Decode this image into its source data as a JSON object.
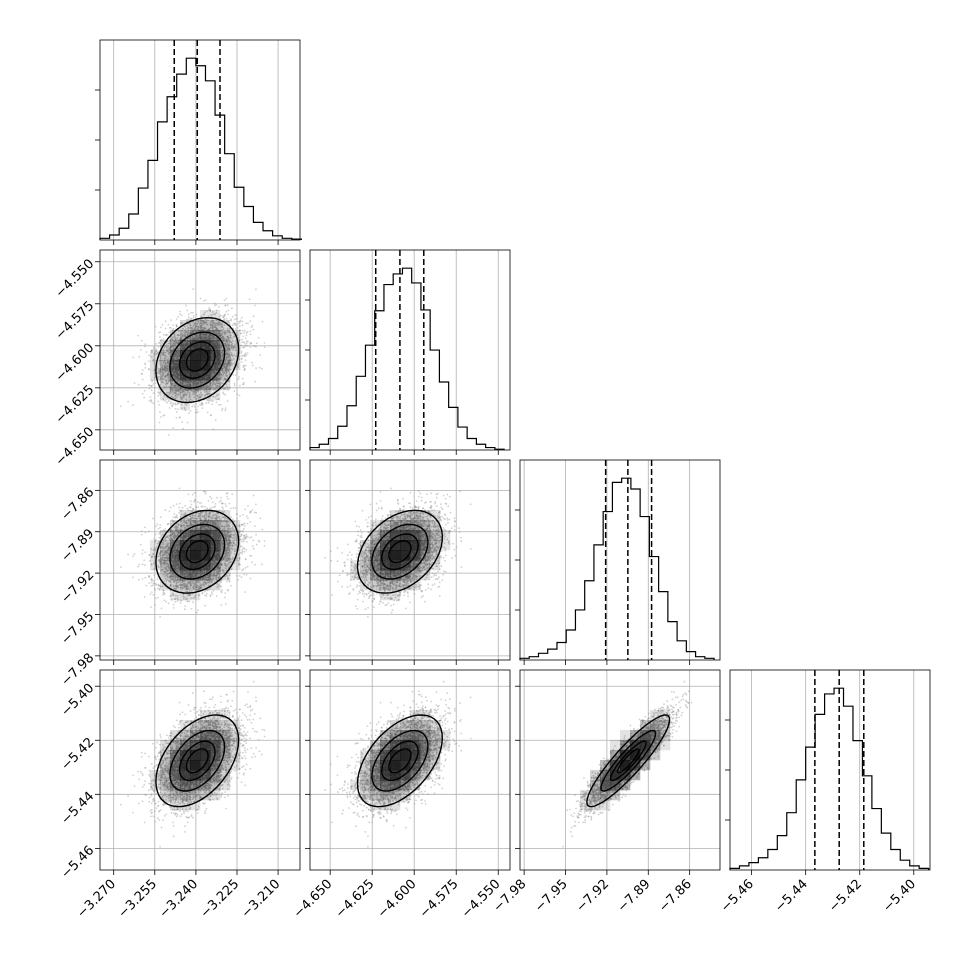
{
  "chart_data": {
    "type": "corner",
    "params": [
      {
        "range": [
          -3.275,
          -3.202
        ],
        "ticks": [
          -3.27,
          -3.255,
          -3.24,
          -3.225,
          -3.21
        ],
        "tick_labels": [
          "−3.270",
          "−3.255",
          "−3.240",
          "−3.225",
          "−3.210"
        ],
        "mean": -3.2395,
        "sd": 0.0073,
        "quantiles": [
          -3.2479,
          -3.2395,
          -3.2312
        ],
        "hist": {
          "edges": [
            -3.275,
            -3.2715,
            -3.268,
            -3.2645,
            -3.261,
            -3.2575,
            -3.254,
            -3.2505,
            -3.247,
            -3.2435,
            -3.24,
            -3.2365,
            -3.233,
            -3.2295,
            -3.226,
            -3.2225,
            -3.219,
            -3.2155,
            -3.212,
            -3.2085,
            -3.205,
            -3.2015
          ],
          "counts": [
            2,
            6,
            14,
            31,
            62,
            95,
            141,
            171,
            198,
            217,
            208,
            190,
            149,
            103,
            63,
            40,
            21,
            11,
            5,
            2,
            1
          ]
        }
      },
      {
        "range": [
          -4.662,
          -4.543
        ],
        "ticks": [
          -4.65,
          -4.625,
          -4.6,
          -4.575,
          -4.55
        ],
        "tick_labels": [
          "−4.650",
          "−4.625",
          "−4.600",
          "−4.575",
          "−4.550"
        ],
        "mean": -4.6085,
        "sd": 0.0122,
        "quantiles": [
          -4.6229,
          -4.6085,
          -4.5943
        ],
        "hist": {
          "edges": [
            -4.662,
            -4.6565,
            -4.651,
            -4.6455,
            -4.64,
            -4.6345,
            -4.629,
            -4.6235,
            -4.618,
            -4.6125,
            -4.607,
            -4.6015,
            -4.596,
            -4.5905,
            -4.585,
            -4.5795,
            -4.574,
            -4.5685,
            -4.563,
            -4.5575,
            -4.552,
            -4.5465
          ],
          "counts": [
            3,
            7,
            14,
            29,
            54,
            90,
            128,
            170,
            202,
            215,
            222,
            204,
            171,
            122,
            83,
            52,
            28,
            14,
            7,
            3,
            1
          ]
        }
      },
      {
        "range": [
          -7.983,
          -7.838
        ],
        "ticks": [
          -7.98,
          -7.95,
          -7.92,
          -7.89,
          -7.86
        ],
        "tick_labels": [
          "−7.98",
          "−7.95",
          "−7.92",
          "−7.89",
          "−7.86"
        ],
        "mean": -7.9045,
        "sd": 0.0145,
        "quantiles": [
          -7.9209,
          -7.9048,
          -7.8876
        ],
        "hist": {
          "edges": [
            -7.983,
            -7.9763,
            -7.9696,
            -7.9629,
            -7.9562,
            -7.9495,
            -7.9428,
            -7.9361,
            -7.9294,
            -7.9227,
            -7.916,
            -7.9093,
            -7.9026,
            -7.8959,
            -7.8892,
            -7.8825,
            -7.8758,
            -7.8691,
            -7.8624,
            -7.8557,
            -7.849,
            -7.8423
          ],
          "counts": [
            2,
            4,
            8,
            13,
            21,
            36,
            60,
            95,
            138,
            178,
            213,
            218,
            205,
            172,
            124,
            82,
            46,
            23,
            10,
            4,
            2
          ]
        }
      },
      {
        "range": [
          -5.468,
          -5.394
        ],
        "ticks": [
          -5.46,
          -5.44,
          -5.42,
          -5.4
        ],
        "tick_labels": [
          "−5.46",
          "−5.44",
          "−5.42",
          "−5.40"
        ],
        "mean": -5.4276,
        "sd": 0.0082,
        "quantiles": [
          -5.4366,
          -5.4276,
          -5.4185
        ],
        "hist": {
          "edges": [
            -5.468,
            -5.4645,
            -5.461,
            -5.4575,
            -5.454,
            -5.4505,
            -5.447,
            -5.4435,
            -5.44,
            -5.4365,
            -5.433,
            -5.4295,
            -5.426,
            -5.4225,
            -5.419,
            -5.4155,
            -5.412,
            -5.4085,
            -5.405,
            -5.4015,
            -5.398,
            -5.3945
          ],
          "counts": [
            2,
            5,
            9,
            15,
            25,
            42,
            70,
            110,
            150,
            190,
            215,
            222,
            200,
            158,
            115,
            75,
            45,
            25,
            12,
            5,
            2
          ]
        }
      }
    ],
    "correlations": [
      [
        1,
        0.25,
        0.25,
        0.45
      ],
      [
        0.25,
        1,
        0.35,
        0.5
      ],
      [
        0.25,
        0.35,
        1,
        0.9
      ],
      [
        0.45,
        0.5,
        0.9,
        1
      ]
    ],
    "contour_levels_sigma": [
      0.5,
      1.0,
      1.5,
      2.0
    ],
    "n_samples": 4000,
    "colors": {
      "points": "#9a9a9a",
      "fill": "#000000",
      "line": "#000000",
      "grid": "#b0b0b0"
    }
  }
}
